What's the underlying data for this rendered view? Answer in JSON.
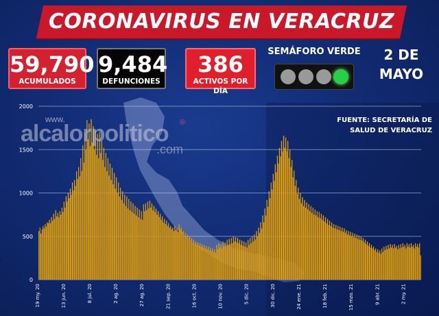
{
  "title": "CORONAVIRUS EN VERACRUZ",
  "stats": [
    {
      "value": "59,790",
      "label": "ACUMULADOS"
    },
    {
      "value": "9,484",
      "label": "DEFUNCIONES"
    },
    {
      "value": "386",
      "label": "ACTIVOS POR DÍA"
    }
  ],
  "semaforo": {
    "label": "SEMÁFORO VERDE",
    "active_lamp": "green",
    "lamps": 4
  },
  "date": {
    "line1": "2 DE",
    "line2": "MAYO"
  },
  "source": {
    "line1": "FUENTE: SECRETARÍA DE",
    "line2": "SALUD DE VERACRUZ"
  },
  "watermark": {
    "prefix": "www.",
    "brand": "alcalorpolitico",
    "reg": "®",
    "suffix": ".com"
  },
  "colors": {
    "bar": "#f2b21c",
    "bar_dark": "#a87208",
    "title_bg": "#c8182a",
    "grid": "#c9d3ef",
    "light_green": "#27d046"
  },
  "chart_data": {
    "type": "bar",
    "title": "",
    "xlabel": "",
    "ylabel": "",
    "ylim": [
      0,
      2000
    ],
    "yticks": [
      0,
      500,
      1000,
      1500,
      2000
    ],
    "grid": true,
    "x_tick_labels": [
      "19 my. 20",
      "13 jun. 20",
      "8 jul. 20",
      "2 ag. 20",
      "27 ag. 20",
      "21 sep. 20",
      "16 oct. 20",
      "10 nov. 20",
      "5 dic. 20",
      "30 dic. 20",
      "24 ene. 21",
      "18 feb. 21",
      "15 mzo. 21",
      "9 abr. 21",
      "2 my. 21"
    ],
    "x_tick_index": [
      0,
      25,
      50,
      75,
      100,
      125,
      150,
      175,
      200,
      225,
      250,
      275,
      300,
      325,
      350
    ],
    "values": [
      560,
      600,
      530,
      580,
      620,
      590,
      640,
      610,
      660,
      650,
      690,
      650,
      720,
      680,
      760,
      700,
      800,
      730,
      770,
      720,
      790,
      750,
      830,
      780,
      900,
      830,
      960,
      900,
      1000,
      940,
      1050,
      980,
      1120,
      1030,
      1150,
      1080,
      1250,
      1160,
      1300,
      1190,
      1400,
      1250,
      1550,
      1350,
      1700,
      1500,
      1840,
      1620,
      1800,
      1540,
      1850,
      1580,
      1770,
      1500,
      1720,
      1440,
      1680,
      1400,
      1700,
      1460,
      1600,
      1380,
      1520,
      1300,
      1460,
      1250,
      1400,
      1200,
      1340,
      1150,
      1290,
      1100,
      1230,
      1050,
      1180,
      1000,
      1120,
      960,
      1060,
      920,
      1020,
      880,
      980,
      850,
      960,
      820,
      930,
      800,
      900,
      780,
      880,
      760,
      850,
      740,
      830,
      720,
      810,
      700,
      790,
      690,
      870,
      790,
      880,
      800,
      900,
      820,
      910,
      830,
      880,
      800,
      850,
      780,
      820,
      750,
      790,
      720,
      760,
      690,
      730,
      660,
      700,
      640,
      680,
      620,
      650,
      600,
      620,
      580,
      600,
      560,
      620,
      570,
      600,
      550,
      640,
      580,
      600,
      550,
      560,
      510,
      540,
      490,
      520,
      470,
      500,
      450,
      480,
      430,
      460,
      410,
      440,
      400,
      430,
      390,
      420,
      380,
      410,
      370,
      400,
      360,
      390,
      350,
      380,
      340,
      370,
      330,
      360,
      320,
      350,
      310,
      400,
      350,
      420,
      370,
      410,
      360,
      440,
      390,
      430,
      380,
      460,
      400,
      470,
      410,
      480,
      420,
      500,
      440,
      490,
      430,
      480,
      420,
      460,
      400,
      450,
      390,
      440,
      380,
      430,
      370,
      460,
      400,
      480,
      420,
      500,
      440,
      520,
      460,
      560,
      500,
      600,
      540,
      660,
      590,
      740,
      660,
      820,
      740,
      920,
      840,
      1020,
      940,
      1120,
      1040,
      1220,
      1140,
      1330,
      1240,
      1430,
      1340,
      1520,
      1420,
      1600,
      1480,
      1660,
      1520,
      1640,
      1480,
      1600,
      1400,
      1500,
      1300,
      1380,
      1180,
      1260,
      1080,
      1150,
      990,
      1060,
      930,
      1000,
      880,
      950,
      850,
      920,
      830,
      890,
      810,
      870,
      790,
      850,
      770,
      830,
      750,
      810,
      740,
      790,
      720,
      780,
      710,
      760,
      690,
      740,
      670,
      720,
      650,
      700,
      630,
      680,
      620,
      660,
      600,
      640,
      590,
      630,
      580,
      620,
      570,
      610,
      560,
      600,
      550,
      590,
      540,
      570,
      520,
      560,
      510,
      550,
      500,
      540,
      490,
      530,
      480,
      520,
      470,
      510,
      460,
      500,
      450,
      480,
      430,
      460,
      410,
      440,
      390,
      420,
      370,
      400,
      360,
      380,
      340,
      360,
      320,
      350,
      310,
      340,
      300,
      360,
      320,
      380,
      340,
      390,
      350,
      400,
      360,
      410,
      370,
      400,
      360,
      410,
      370,
      390,
      350,
      400,
      360,
      410,
      370,
      420,
      380,
      400,
      360,
      420,
      380,
      410,
      370,
      420,
      380,
      400,
      360,
      420,
      380,
      410,
      370,
      420,
      280
    ]
  }
}
